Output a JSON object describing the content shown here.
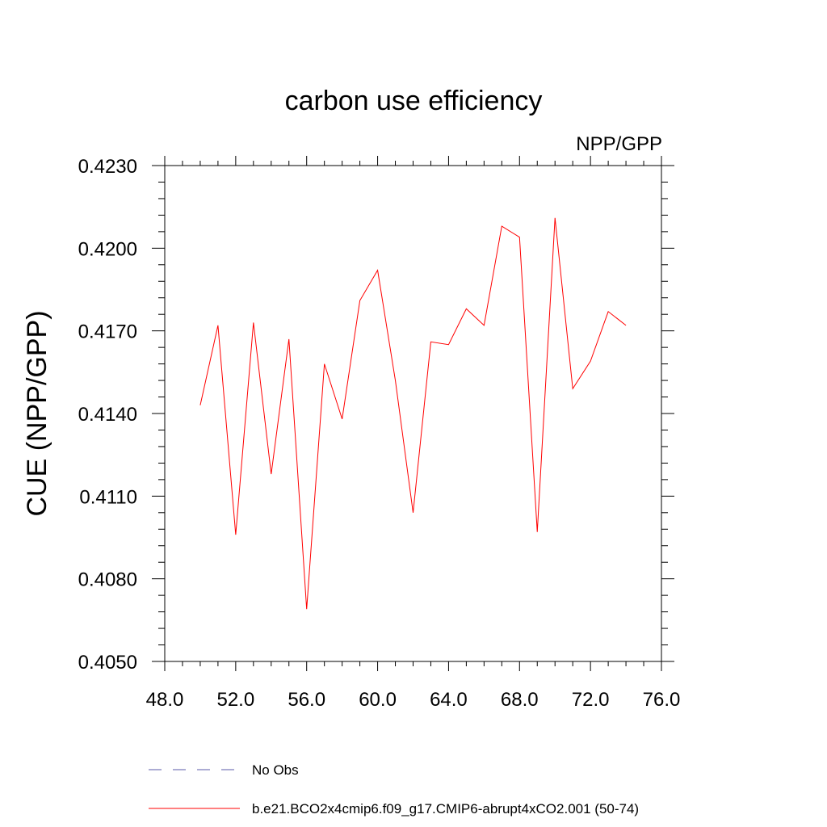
{
  "chart_data": {
    "type": "line",
    "title": "carbon use efficiency",
    "subtitle": "NPP/GPP",
    "xlabel": "",
    "ylabel": "CUE  (NPP/GPP)",
    "xlim": [
      48.0,
      76.0
    ],
    "ylim": [
      0.405,
      0.423
    ],
    "x_ticks": [
      "48.0",
      "52.0",
      "56.0",
      "60.0",
      "64.0",
      "68.0",
      "72.0",
      "76.0"
    ],
    "y_ticks": [
      "0.4050",
      "0.4080",
      "0.4110",
      "0.4140",
      "0.4170",
      "0.4200",
      "0.4230"
    ],
    "grid": false,
    "legend_position": "bottom",
    "series": [
      {
        "name": "No Obs",
        "color": "#5a5aa8",
        "dash": "dashed",
        "x": [],
        "y": []
      },
      {
        "name": "b.e21.BCO2x4cmip6.f09_g17.CMIP6-abrupt4xCO2.001 (50-74)",
        "color": "#ff0000",
        "dash": "solid",
        "x": [
          50,
          51,
          52,
          53,
          54,
          55,
          56,
          57,
          58,
          59,
          60,
          61,
          62,
          63,
          64,
          65,
          66,
          67,
          68,
          69,
          70,
          71,
          72,
          73,
          74
        ],
        "y": [
          0.4143,
          0.4172,
          0.4096,
          0.4173,
          0.4118,
          0.4167,
          0.4069,
          0.4158,
          0.4138,
          0.4181,
          0.4192,
          0.4152,
          0.4104,
          0.4166,
          0.4165,
          0.4178,
          0.4172,
          0.4208,
          0.4204,
          0.4097,
          0.4211,
          0.4149,
          0.4159,
          0.4177,
          0.4172
        ]
      }
    ]
  }
}
